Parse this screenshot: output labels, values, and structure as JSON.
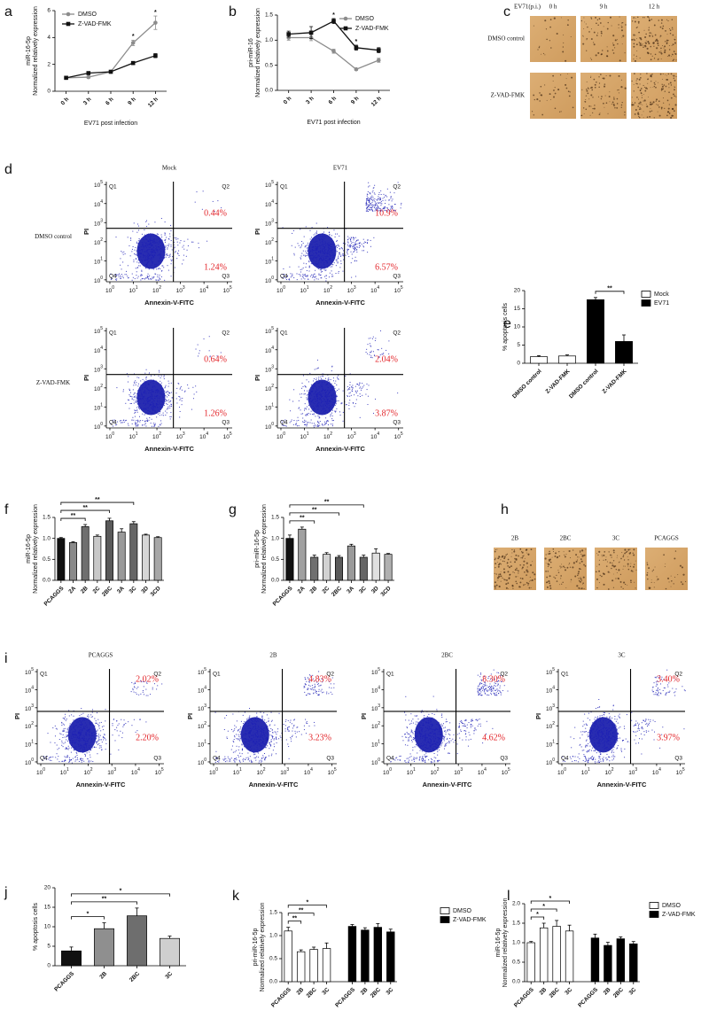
{
  "chart_data": [
    {
      "type": "line",
      "panel": "a",
      "ylabel": [
        "miR-16-5p",
        "Normalized relatively expression"
      ],
      "xlabel": "EV71 post infection",
      "categories": [
        "0 h",
        "3 h",
        "6 h",
        "9 h",
        "12 h"
      ],
      "series": [
        {
          "name": "DMSO",
          "color": "#8c8c8c",
          "marker": "circle",
          "values": [
            1.0,
            1.05,
            1.45,
            3.6,
            5.1
          ],
          "errors": [
            0.05,
            0.08,
            0.08,
            0.2,
            0.5
          ]
        },
        {
          "name": "Z-VAD-FMK",
          "color": "#111111",
          "marker": "square",
          "values": [
            1.0,
            1.35,
            1.45,
            2.1,
            2.65
          ],
          "errors": [
            0.05,
            0.05,
            0.06,
            0.1,
            0.15
          ]
        }
      ],
      "stars": [
        null,
        null,
        null,
        "*",
        "*"
      ],
      "ylim": [
        0,
        6
      ],
      "yticks": [
        0,
        2,
        4,
        6
      ],
      "legend": "upper left"
    },
    {
      "type": "line",
      "panel": "b",
      "ylabel": [
        "pri-miR-16",
        "Normalized relatively expression"
      ],
      "xlabel": "EV71 post infection",
      "categories": [
        "0 h",
        "3 h",
        "6 h",
        "9 h",
        "12 h"
      ],
      "series": [
        {
          "name": "DMSO",
          "color": "#8c8c8c",
          "marker": "circle",
          "values": [
            1.05,
            1.05,
            0.78,
            0.42,
            0.6
          ],
          "errors": [
            0.05,
            0.06,
            0.04,
            0.02,
            0.04
          ]
        },
        {
          "name": "Z-VAD-FMK",
          "color": "#111111",
          "marker": "square",
          "values": [
            1.12,
            1.15,
            1.38,
            0.85,
            0.8
          ],
          "errors": [
            0.06,
            0.12,
            0.05,
            0.05,
            0.05
          ]
        }
      ],
      "stars": [
        null,
        null,
        "*",
        "*",
        null
      ],
      "ylim": [
        0,
        1.5
      ],
      "yticks": [
        {
          "value": 0,
          "label": "0.0"
        },
        0.5,
        {
          "value": 1,
          "label": "1.0"
        },
        1.5
      ],
      "legend": "upper right"
    },
    {
      "type": "micrograph",
      "panel": "c",
      "title": "EV71(p.i.)",
      "col_headers": [
        "0 h",
        "9  h",
        "12 h"
      ],
      "row_headers": [
        "DMSO control",
        "Z-VAD-FMK"
      ]
    },
    {
      "type": "flow",
      "panel": "d",
      "col_headers": [
        "Mock",
        "EV71"
      ],
      "row_headers": [
        "DMSO control",
        "Z-VAD-FMK"
      ],
      "xlabel": "Annexin-V-FITC",
      "ylabel": "PI",
      "quadrants": [
        "Q1",
        "Q2",
        "Q3",
        "Q4"
      ],
      "tick_base": "10",
      "ticks": [
        0,
        1,
        2,
        3,
        4,
        5
      ],
      "xlim": [
        -0.15,
        5.2
      ],
      "ylim": [
        -0.1,
        5.15
      ],
      "gate": {
        "x": 2.7,
        "y": 2.7
      },
      "plots": [
        {
          "q2": "0.44%",
          "q3": "1.24%"
        },
        {
          "q2": "10.9%",
          "q3": "6.57%"
        },
        {
          "q2": "0.64%",
          "q3": "1.26%"
        },
        {
          "q2": "2.04%",
          "q3": "3.87%"
        }
      ]
    },
    {
      "type": "bar",
      "panel": "e",
      "ylabel": "% apoptosis cells",
      "categories": [
        "DMSO control",
        "Z-VAD-FMK",
        "DMSO control",
        "Z-VAD-FMK"
      ],
      "series": [
        {
          "name": "Mock",
          "color": "#ffffff",
          "values": [
            1.8,
            2.0,
            null,
            null
          ],
          "errors": [
            0.3,
            0.3,
            null,
            null
          ]
        },
        {
          "name": "EV71",
          "color": "#000000",
          "values": [
            null,
            null,
            17.5,
            6.0
          ],
          "errors": [
            null,
            null,
            0.6,
            1.8
          ]
        }
      ],
      "comparisons": [
        {
          "from": 2,
          "to": 3,
          "label": "**"
        }
      ],
      "ylim": [
        0,
        20
      ],
      "yticks": [
        0,
        5,
        10,
        15,
        20
      ],
      "legend": "upper right"
    },
    {
      "type": "bar",
      "panel": "f",
      "ylabel": [
        "miR-16-5p",
        "Normalized relatively expression"
      ],
      "categories": [
        "PCAGGS",
        "2A",
        "2B",
        "2C",
        "2BC",
        "3A",
        "3C",
        "3D",
        "3CD"
      ],
      "values": [
        1.0,
        0.9,
        1.28,
        1.05,
        1.42,
        1.15,
        1.35,
        1.08,
        1.02
      ],
      "errors": [
        0.02,
        0.02,
        0.05,
        0.03,
        0.06,
        0.08,
        0.05,
        0.02,
        0.02
      ],
      "colors": [
        "#111111",
        "#8a8a8a",
        "#6f6f6f",
        "#c8c8c8",
        "#5a5a5a",
        "#9a9a9a",
        "#666666",
        "#d6d6d6",
        "#a8a8a8"
      ],
      "comparisons": [
        {
          "from": 0,
          "to": 2,
          "label": "**"
        },
        {
          "from": 0,
          "to": 4,
          "label": "**"
        },
        {
          "from": 0,
          "to": 6,
          "label": "**"
        }
      ],
      "ylim": [
        0,
        1.5
      ],
      "yticks": [
        {
          "value": 0,
          "label": "0.0"
        },
        0.5,
        {
          "value": 1,
          "label": "1.0"
        },
        1.5
      ]
    },
    {
      "type": "bar",
      "panel": "g",
      "ylabel": [
        "pri-miR-16-5p",
        "Normalized relatively expression"
      ],
      "categories": [
        "PCAGGS",
        "2A",
        "2B",
        "2C",
        "2BC",
        "3A",
        "3C",
        "3D",
        "3CD"
      ],
      "values": [
        1.0,
        1.22,
        0.55,
        0.62,
        0.55,
        0.82,
        0.55,
        0.65,
        0.62
      ],
      "errors": [
        0.08,
        0.05,
        0.05,
        0.04,
        0.04,
        0.04,
        0.05,
        0.1,
        0.02
      ],
      "colors": [
        "#111111",
        "#a0a0a0",
        "#6f6f6f",
        "#d2d2d2",
        "#5a5a5a",
        "#9a9a9a",
        "#666666",
        "#e0e0e0",
        "#b0b0b0"
      ],
      "comparisons": [
        {
          "from": 0,
          "to": 2,
          "label": "**"
        },
        {
          "from": 0,
          "to": 4,
          "label": "**"
        },
        {
          "from": 0,
          "to": 6,
          "label": "**"
        }
      ],
      "ylim": [
        0,
        1.5
      ],
      "yticks": [
        {
          "value": 0,
          "label": "0.0"
        },
        0.5,
        {
          "value": 1,
          "label": "1.0"
        },
        1.5
      ]
    },
    {
      "type": "micrograph",
      "panel": "h",
      "col_headers": [
        "2B",
        "2BC",
        "3C",
        "PCAGGS"
      ]
    },
    {
      "type": "flow",
      "panel": "i",
      "col_headers": [
        "PCAGGS",
        "2B",
        "2BC",
        "3C"
      ],
      "xlabel": "Annexin-V-FITC",
      "ylabel": "PI",
      "quadrants": [
        "Q1",
        "Q2",
        "Q3",
        "Q4"
      ],
      "tick_base": "10",
      "ticks": [
        0,
        1,
        2,
        3,
        4,
        5
      ],
      "xlim": [
        -0.15,
        5.2
      ],
      "ylim": [
        -0.1,
        5.15
      ],
      "gate": {
        "x": 2.9,
        "y": 2.8
      },
      "plots": [
        {
          "q2": "2.02%",
          "q3": "2.20%"
        },
        {
          "q2": "4.83%",
          "q3": "3.23%"
        },
        {
          "q2": "8.30%",
          "q3": "4.62%"
        },
        {
          "q2": "3.40%",
          "q3": "3.97%"
        }
      ]
    },
    {
      "type": "bar",
      "panel": "j",
      "ylabel": "% apoptosis cells",
      "categories": [
        "PCAGGS",
        "2B",
        "2BC",
        "3C"
      ],
      "values": [
        3.8,
        9.5,
        12.8,
        7.0
      ],
      "errors": [
        1.0,
        1.5,
        2.0,
        0.6
      ],
      "colors": [
        "#111111",
        "#8f8f8f",
        "#6e6e6e",
        "#cfcfcf"
      ],
      "comparisons": [
        {
          "from": 0,
          "to": 1,
          "label": "*"
        },
        {
          "from": 0,
          "to": 2,
          "label": "**"
        },
        {
          "from": 0,
          "to": 3,
          "label": "*"
        }
      ],
      "ylim": [
        0,
        20
      ],
      "yticks": [
        0,
        5,
        10,
        15,
        20
      ]
    },
    {
      "type": "bar",
      "panel": "k",
      "ylabel": [
        "pri-miR-16-5p",
        "Normalized relatively expression"
      ],
      "categories": [
        "PCAGGS",
        "2B",
        "2BC",
        "3C",
        null,
        "PCAGGS",
        "2B",
        "2BC",
        "3C"
      ],
      "series": [
        {
          "name": "DMSO",
          "color": "#ffffff",
          "values": [
            1.1,
            0.65,
            0.7,
            0.72,
            null,
            null,
            null,
            null,
            null
          ],
          "errors": [
            0.08,
            0.04,
            0.05,
            0.12,
            null,
            null,
            null,
            null,
            null
          ]
        },
        {
          "name": "Z-VAD-FMK",
          "color": "#000000",
          "values": [
            null,
            null,
            null,
            null,
            null,
            1.2,
            1.12,
            1.18,
            1.08
          ],
          "errors": [
            null,
            null,
            null,
            null,
            null,
            0.04,
            0.05,
            0.08,
            0.06
          ]
        }
      ],
      "comparisons": [
        {
          "from": 0,
          "to": 1,
          "label": "**"
        },
        {
          "from": 0,
          "to": 2,
          "label": "**"
        },
        {
          "from": 0,
          "to": 3,
          "label": "*"
        }
      ],
      "ylim": [
        0,
        1.5
      ],
      "yticks": [
        {
          "value": 0,
          "label": "0.0"
        },
        0.5,
        {
          "value": 1,
          "label": "1.0"
        },
        1.5
      ],
      "legend": "upper right"
    },
    {
      "type": "bar",
      "panel": "l",
      "ylabel": [
        "miR-16-5p",
        "Normalized relatively expression"
      ],
      "categories": [
        "PCAGGS",
        "2B",
        "2BC",
        "3C",
        null,
        "PCAGGS",
        "2B",
        "2BC",
        "3C"
      ],
      "series": [
        {
          "name": "DMSO",
          "color": "#ffffff",
          "values": [
            1.0,
            1.38,
            1.42,
            1.3,
            null,
            null,
            null,
            null,
            null
          ],
          "errors": [
            0.03,
            0.12,
            0.15,
            0.15,
            null,
            null,
            null,
            null,
            null
          ]
        },
        {
          "name": "Z-VAD-FMK",
          "color": "#000000",
          "values": [
            null,
            null,
            null,
            null,
            null,
            1.12,
            0.93,
            1.1,
            0.97
          ],
          "errors": [
            null,
            null,
            null,
            null,
            null,
            0.1,
            0.08,
            0.05,
            0.06
          ]
        }
      ],
      "comparisons": [
        {
          "from": 0,
          "to": 1,
          "label": "*"
        },
        {
          "from": 0,
          "to": 2,
          "label": "*"
        },
        {
          "from": 0,
          "to": 3,
          "label": "*"
        }
      ],
      "ylim": [
        0,
        2
      ],
      "yticks": [
        {
          "value": 0,
          "label": "0.0"
        },
        0.5,
        {
          "value": 1,
          "label": "1.0"
        },
        1.5,
        {
          "value": 2,
          "label": "2.0"
        }
      ],
      "legend": "upper right"
    }
  ]
}
